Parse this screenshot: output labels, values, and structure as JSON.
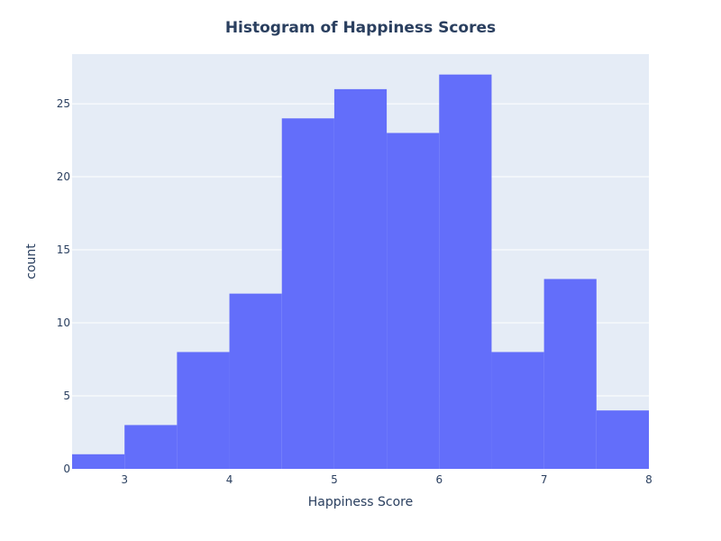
{
  "chart_data": {
    "type": "bar",
    "title": "Histogram of Happiness Scores",
    "xlabel": "Happiness Score",
    "ylabel": "count",
    "xlim": [
      2.5,
      8
    ],
    "ylim": [
      0,
      28.4
    ],
    "x_ticks": [
      3,
      4,
      5,
      6,
      7,
      8
    ],
    "y_ticks": [
      0,
      5,
      10,
      15,
      20,
      25
    ],
    "bin_width": 0.5,
    "bins": [
      {
        "start": 2.5,
        "end": 3.0,
        "count": 1
      },
      {
        "start": 3.0,
        "end": 3.5,
        "count": 3
      },
      {
        "start": 3.5,
        "end": 4.0,
        "count": 8
      },
      {
        "start": 4.0,
        "end": 4.5,
        "count": 12
      },
      {
        "start": 4.5,
        "end": 5.0,
        "count": 24
      },
      {
        "start": 5.0,
        "end": 5.5,
        "count": 26
      },
      {
        "start": 5.5,
        "end": 6.0,
        "count": 23
      },
      {
        "start": 6.0,
        "end": 6.5,
        "count": 27
      },
      {
        "start": 6.5,
        "end": 7.0,
        "count": 8
      },
      {
        "start": 7.0,
        "end": 7.5,
        "count": 13
      },
      {
        "start": 7.5,
        "end": 8.0,
        "count": 4
      }
    ],
    "grid": true,
    "legend": "none",
    "colors": {
      "bar": "#636efa",
      "plot_background": "#e5ecf6",
      "grid": "#ffffff",
      "text": "#2a3f5f"
    }
  }
}
